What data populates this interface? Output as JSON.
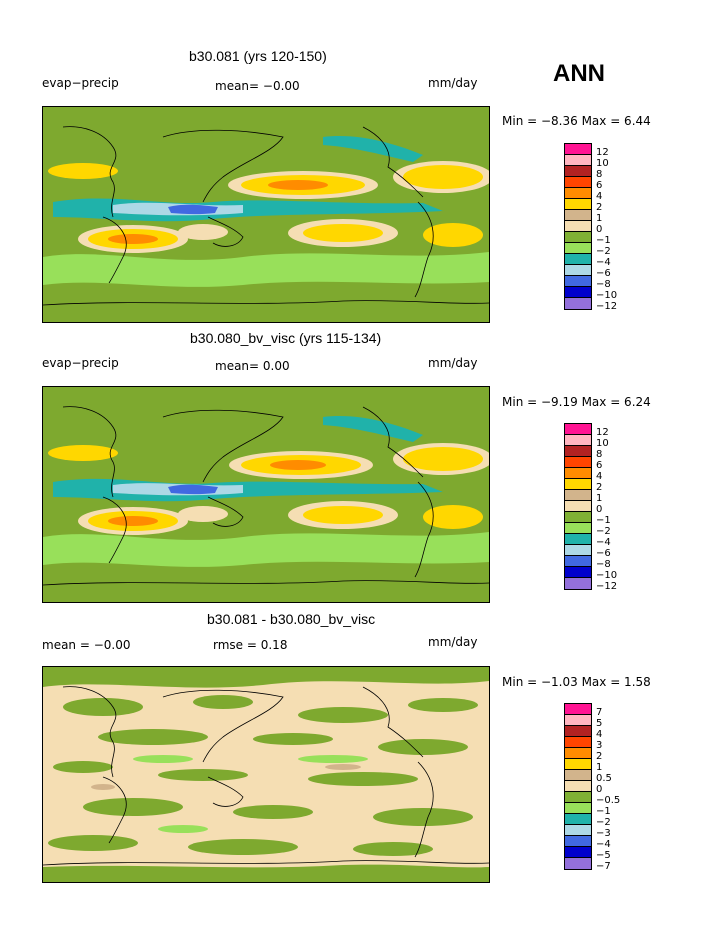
{
  "header": {
    "season": "ANN"
  },
  "panels": [
    {
      "title": "b30.081 (yrs 120-150)",
      "left_label": "evap−precip",
      "center_label": "mean=   −0.00",
      "right_label": "mm/day",
      "minmax": "Min =   −8.36  Max =     6.44"
    },
    {
      "title": "b30.080_bv_visc (yrs 115-134)",
      "left_label": "evap−precip",
      "center_label": "mean=    0.00",
      "right_label": "mm/day",
      "minmax": "Min =   −9.19  Max =     6.24"
    },
    {
      "title": "b30.081 - b30.080_bv_visc",
      "left_label": "mean =   −0.00",
      "center_label": "rmse =    0.18",
      "right_label": "mm/day",
      "minmax": "Min =   −1.03  Max =     1.58"
    }
  ],
  "colorbar_colors": [
    "#ff1493",
    "#ffb6c1",
    "#b22222",
    "#ff4500",
    "#ff8c00",
    "#ffd700",
    "#d2b48c",
    "#f5deb3",
    "#7fb034",
    "#98e05a",
    "#20b2aa",
    "#add8e6",
    "#4169e1",
    "#0000cd",
    "#9370db"
  ],
  "colorbars": [
    {
      "ticks": [
        "12",
        "10",
        "8",
        "6",
        "4",
        "2",
        "1",
        "0",
        "−1",
        "−2",
        "−4",
        "−6",
        "−8",
        "−10",
        "−12"
      ]
    },
    {
      "ticks": [
        "12",
        "10",
        "8",
        "6",
        "4",
        "2",
        "1",
        "0",
        "−1",
        "−2",
        "−4",
        "−6",
        "−8",
        "−10",
        "−12"
      ]
    },
    {
      "ticks": [
        "7",
        "5",
        "4",
        "3",
        "2",
        "1",
        "0.5",
        "0",
        "−0.5",
        "−1",
        "−2",
        "−3",
        "−4",
        "−5",
        "−7"
      ]
    }
  ],
  "chart_data": [
    {
      "type": "heatmap",
      "title": "b30.081 (yrs 120-150)",
      "variable": "evap−precip",
      "units": "mm/day",
      "mean": 0.0,
      "min": -8.36,
      "max": 6.44,
      "levels": [
        -12,
        -10,
        -8,
        -6,
        -4,
        -2,
        -1,
        0,
        1,
        2,
        4,
        6,
        8,
        10,
        12
      ]
    },
    {
      "type": "heatmap",
      "title": "b30.080_bv_visc (yrs 115-134)",
      "variable": "evap−precip",
      "units": "mm/day",
      "mean": 0.0,
      "min": -9.19,
      "max": 6.24,
      "levels": [
        -12,
        -10,
        -8,
        -6,
        -4,
        -2,
        -1,
        0,
        1,
        2,
        4,
        6,
        8,
        10,
        12
      ]
    },
    {
      "type": "heatmap",
      "title": "b30.081 - b30.080_bv_visc",
      "units": "mm/day",
      "mean": 0.0,
      "rmse": 0.18,
      "min": -1.03,
      "max": 1.58,
      "levels": [
        -7,
        -5,
        -4,
        -3,
        -2,
        -1,
        -0.5,
        0,
        0.5,
        1,
        2,
        3,
        4,
        5,
        7
      ]
    }
  ]
}
